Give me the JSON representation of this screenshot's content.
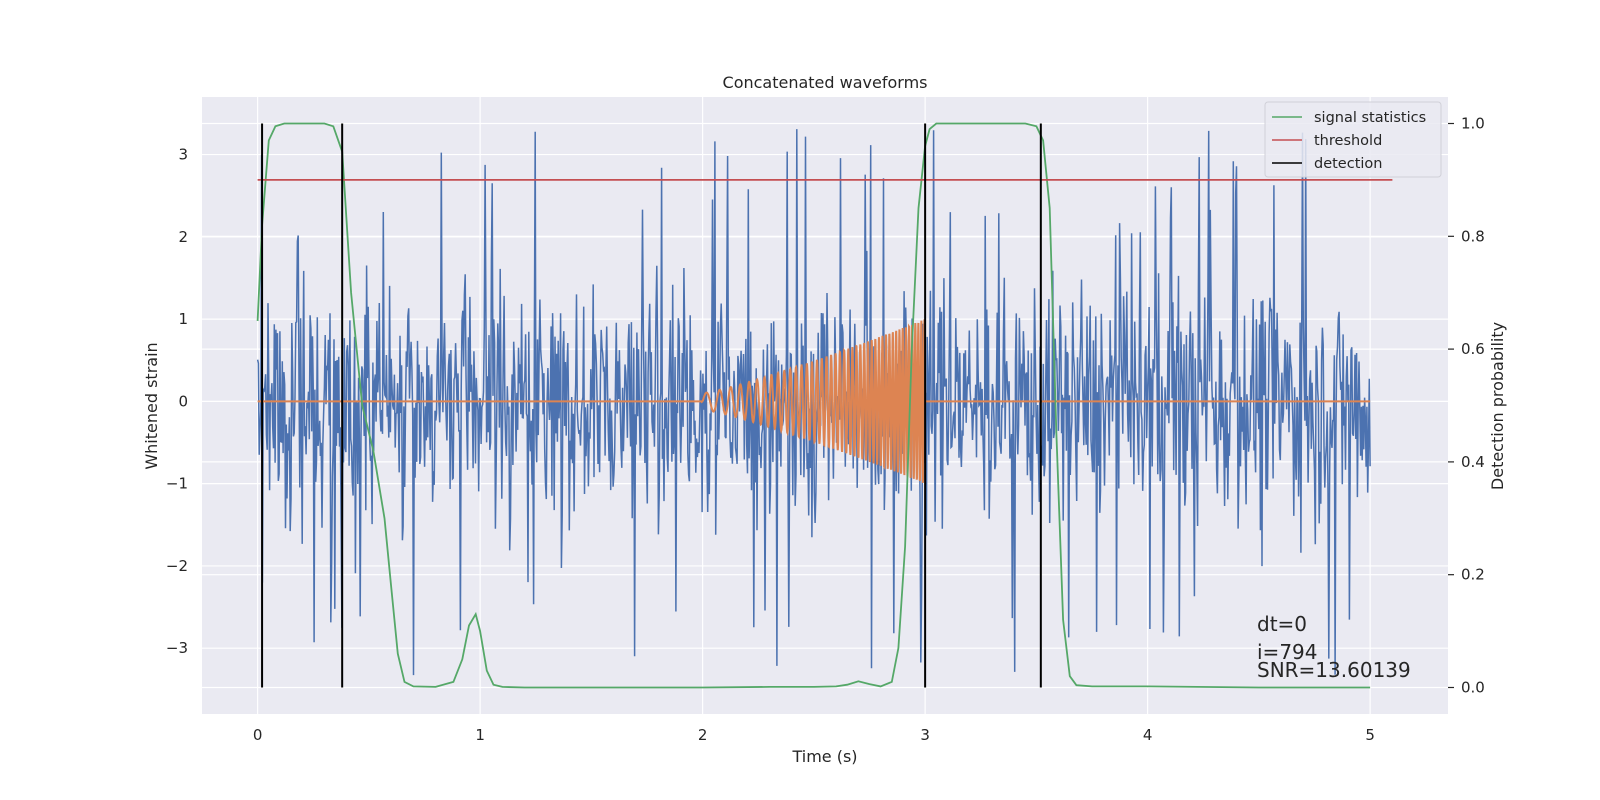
{
  "chart_data": {
    "type": "line",
    "title": "Concatenated waveforms",
    "xlabel": "Time (s)",
    "ylabel": "Whitened strain",
    "y2label": "Detection probability",
    "xlim": [
      -0.25,
      5.35
    ],
    "ylim": [
      -3.8,
      3.7
    ],
    "y2lim": [
      -0.047,
      1.047
    ],
    "x_ticks": [
      0,
      1,
      2,
      3,
      4,
      5
    ],
    "x_tick_labels": [
      "0",
      "1",
      "2",
      "3",
      "4",
      "5"
    ],
    "y_ticks": [
      -3,
      -2,
      -1,
      0,
      1,
      2,
      3
    ],
    "y_tick_labels": [
      "−3",
      "−2",
      "−1",
      "0",
      "1",
      "2",
      "3"
    ],
    "y2_ticks": [
      0.0,
      0.2,
      0.4,
      0.6,
      0.8,
      1.0
    ],
    "y2_tick_labels": [
      "0.0",
      "0.2",
      "0.4",
      "0.6",
      "0.8",
      "1.0"
    ],
    "grid": true,
    "legend_position": "top-right",
    "noise": {
      "x_range": [
        0,
        5
      ],
      "n_points": 1400,
      "y_range": [
        -3.45,
        3.35
      ],
      "color": "#4c72b0"
    },
    "chirp": {
      "x_range": [
        2.0,
        3.0
      ],
      "start_amplitude": 0.1,
      "end_amplitude": 1.0,
      "start_frequency_hz": 14,
      "end_frequency_hz": 75,
      "baseline": 0,
      "color": "#dd8452"
    },
    "series": [
      {
        "name": "signal statistics",
        "color": "#55a868",
        "axis": "right",
        "x": [
          0,
          0.02,
          0.05,
          0.08,
          0.12,
          0.2,
          0.3,
          0.34,
          0.38,
          0.42,
          0.47,
          0.52,
          0.57,
          0.6,
          0.63,
          0.66,
          0.7,
          0.8,
          0.88,
          0.92,
          0.95,
          0.98,
          1.0,
          1.03,
          1.06,
          1.1,
          1.2,
          1.5,
          2.0,
          2.3,
          2.5,
          2.6,
          2.65,
          2.7,
          2.75,
          2.8,
          2.85,
          2.88,
          2.91,
          2.94,
          2.97,
          3.0,
          3.02,
          3.05,
          3.1,
          3.2,
          3.35,
          3.45,
          3.5,
          3.53,
          3.56,
          3.59,
          3.62,
          3.65,
          3.68,
          3.75,
          4.0,
          4.5,
          5.0
        ],
        "y": [
          0.65,
          0.82,
          0.97,
          0.995,
          1.0,
          1.0,
          1.0,
          0.995,
          0.95,
          0.7,
          0.5,
          0.42,
          0.3,
          0.18,
          0.06,
          0.01,
          0.002,
          0.001,
          0.01,
          0.05,
          0.11,
          0.13,
          0.1,
          0.03,
          0.005,
          0.001,
          0.0,
          0.0,
          0.0,
          0.001,
          0.001,
          0.002,
          0.005,
          0.011,
          0.006,
          0.002,
          0.01,
          0.07,
          0.25,
          0.6,
          0.85,
          0.96,
          0.99,
          1.0,
          1.0,
          1.0,
          1.0,
          1.0,
          0.995,
          0.97,
          0.85,
          0.45,
          0.12,
          0.02,
          0.004,
          0.002,
          0.002,
          0.0,
          0.0
        ]
      },
      {
        "name": "threshold",
        "color": "#c44e52",
        "axis": "right",
        "x": [
          0,
          5.1
        ],
        "y": [
          0.9,
          0.9
        ]
      },
      {
        "name": "detection",
        "color": "#000000",
        "axis": "right",
        "type": "vlines",
        "x": [
          0.02,
          0.38,
          3.0,
          3.52
        ],
        "y_range": [
          0.0,
          1.0
        ]
      }
    ],
    "annotations": [
      "dt=0",
      "i=794",
      "SNR=13.60139"
    ]
  }
}
